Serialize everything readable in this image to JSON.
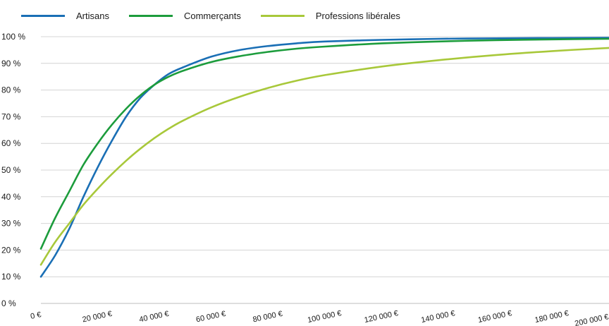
{
  "chart_data": {
    "type": "line",
    "title": "",
    "xlabel": "",
    "ylabel": "",
    "xlim": [
      0,
      200000
    ],
    "ylim": [
      0,
      100
    ],
    "grid": true,
    "legend_position": "top-left",
    "x_tick_labels": [
      "0 €",
      "20 000 €",
      "40 000 €",
      "60 000 €",
      "80 000 €",
      "100 000 €",
      "120 000 €",
      "140 000 €",
      "160 000 €",
      "180 000 €",
      "200 000 €"
    ],
    "x_tick_values": [
      0,
      20000,
      40000,
      60000,
      80000,
      100000,
      120000,
      140000,
      160000,
      180000,
      200000
    ],
    "y_tick_labels": [
      "0 %",
      "10 %",
      "20 %",
      "30 %",
      "40 %",
      "50 %",
      "60 %",
      "70 %",
      "80 %",
      "90 %",
      "100 %"
    ],
    "y_tick_values": [
      0,
      10,
      20,
      30,
      40,
      50,
      60,
      70,
      80,
      90,
      100
    ],
    "x": [
      0,
      5000,
      10000,
      15000,
      20000,
      25000,
      30000,
      35000,
      40000,
      45000,
      50000,
      60000,
      70000,
      80000,
      90000,
      100000,
      120000,
      140000,
      160000,
      180000,
      200000
    ],
    "series": [
      {
        "name": "Artisans",
        "color": "#1a6fb5",
        "values": [
          10,
          18,
          28,
          40,
          51,
          61,
          70,
          77,
          82,
          86,
          88.5,
          92.5,
          95,
          96.5,
          97.5,
          98.2,
          98.8,
          99.2,
          99.4,
          99.5,
          99.6
        ]
      },
      {
        "name": "Commerçants",
        "color": "#1c9c3c",
        "values": [
          20.5,
          32,
          42,
          52,
          60,
          67,
          73,
          78,
          82,
          85,
          87.2,
          90.5,
          92.7,
          94.3,
          95.5,
          96.3,
          97.5,
          98.2,
          98.7,
          99.0,
          99.2
        ]
      },
      {
        "name": "Professions libérales",
        "color": "#a8c83a",
        "values": [
          14.5,
          23,
          30,
          37,
          43,
          48.5,
          53.5,
          58,
          62,
          65.5,
          68.5,
          73.5,
          77.5,
          80.8,
          83.5,
          85.6,
          88.8,
          91.2,
          93.1,
          94.6,
          95.8
        ]
      }
    ]
  }
}
